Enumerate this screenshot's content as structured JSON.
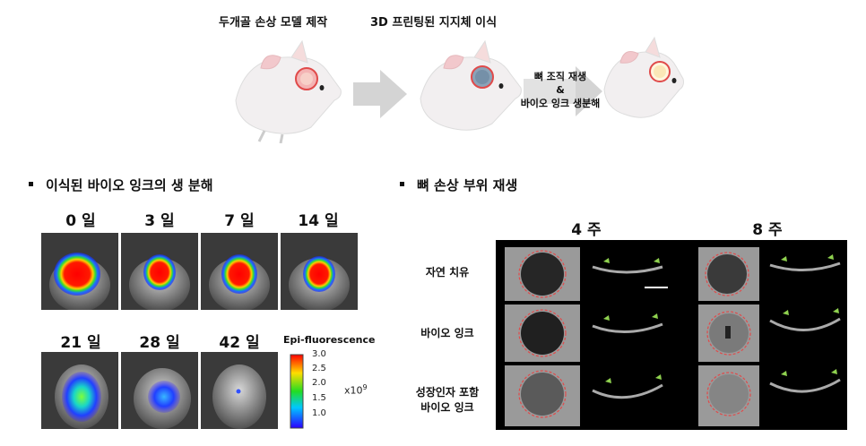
{
  "top": {
    "stage1_label": "두개골 손상 모델 제작",
    "stage2_label": "3D 프린팅된 지지체 이식",
    "arrow_label_line1": "뼈 조직 재생",
    "arrow_label_line2": "&",
    "arrow_label_line3": "바이오 잉크 생분해"
  },
  "left": {
    "title": "이식된 바이오 잉크의 생 분해",
    "days": [
      "0 일",
      "3 일",
      "7 일",
      "14 일",
      "21 일",
      "28 일",
      "42 일"
    ],
    "colorbar": {
      "title": "Epi-fluorescence",
      "ticks": [
        "3.0",
        "2.5",
        "2.0",
        "1.5",
        "1.0"
      ],
      "unit": "x10",
      "exponent": "9"
    }
  },
  "right": {
    "title": "뼈 손상 부위 재생",
    "weeks": [
      "4 주",
      "8 주"
    ],
    "rows": [
      "자연 치유",
      "바이오 잉크",
      "성장인자 포함",
      "바이오 잉크"
    ]
  },
  "colors": {
    "arrow": "#d4d4d4",
    "scaffold_red": "#e04a4a",
    "ct_bg": "#000000",
    "marker": "#8fd14f"
  }
}
